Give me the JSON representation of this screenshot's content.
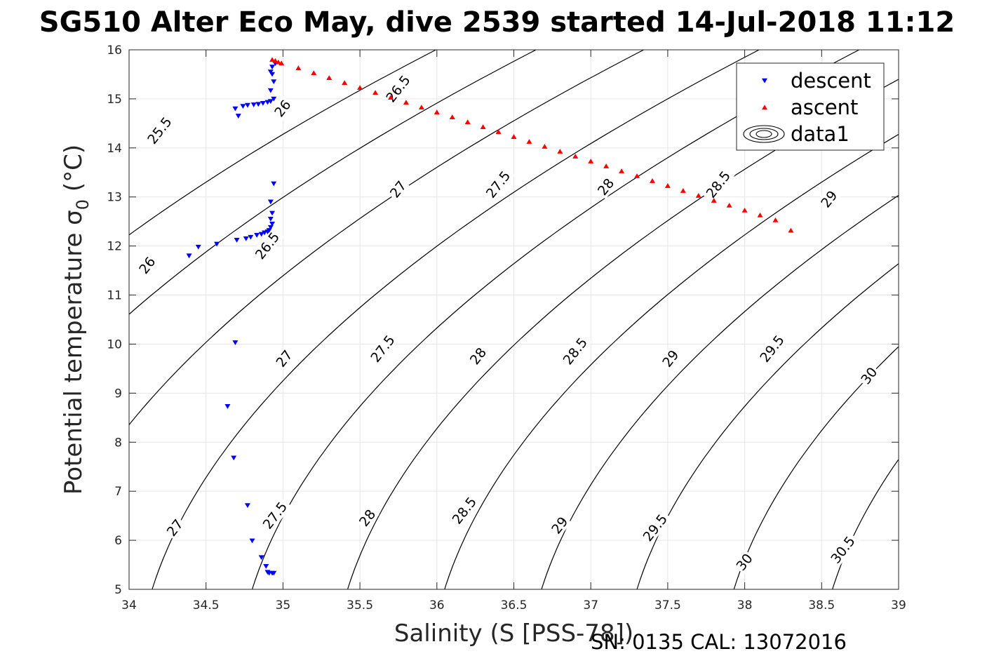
{
  "title": "SG510 Alter Eco May, dive 2539 started 14-Jul-2018 11:12",
  "footer": "SN: 0135  CAL: 13072016",
  "chart_data": {
    "type": "scatter",
    "xlabel": "Salinity (S [PSS-78])",
    "ylabel_text": "Potential temperature σ",
    "ylabel_subscript": "0",
    "ylabel_unit": " (°C)",
    "xlim": [
      34,
      39
    ],
    "ylim": [
      5,
      16
    ],
    "xticks": [
      "34",
      "34.5",
      "35",
      "35.5",
      "36",
      "36.5",
      "37",
      "37.5",
      "38",
      "38.5",
      "39"
    ],
    "yticks": [
      "5",
      "6",
      "7",
      "8",
      "9",
      "10",
      "11",
      "12",
      "13",
      "14",
      "15",
      "16"
    ],
    "grid": true,
    "legend_position": "top-right",
    "legend": [
      "descent",
      "ascent",
      "data1"
    ],
    "colors": {
      "descent": "#0000ff",
      "ascent": "#ff0000",
      "contour": "#000000"
    },
    "series": [
      {
        "name": "descent",
        "marker": "triangle-down",
        "x": [
          34.95,
          34.93,
          34.92,
          34.93,
          34.94,
          34.92,
          34.94,
          34.92,
          34.9,
          34.87,
          34.84,
          34.81,
          34.77,
          34.74,
          34.69,
          34.71,
          34.94,
          34.92,
          34.93,
          34.92,
          34.93,
          34.92,
          34.91,
          34.9,
          34.88,
          34.86,
          34.83,
          34.79,
          34.76,
          34.7,
          34.57,
          34.45,
          34.39,
          34.69,
          34.64,
          34.68,
          34.77,
          34.8,
          34.86,
          34.89,
          34.9,
          34.91,
          34.93,
          34.94
        ],
        "y": [
          15.72,
          15.65,
          15.55,
          15.5,
          15.35,
          15.17,
          15.0,
          14.95,
          14.93,
          14.91,
          14.89,
          14.88,
          14.87,
          14.85,
          14.8,
          14.65,
          13.27,
          12.9,
          12.67,
          12.55,
          12.45,
          12.38,
          12.32,
          12.29,
          12.27,
          12.24,
          12.22,
          12.18,
          12.15,
          12.12,
          12.04,
          11.98,
          11.8,
          10.03,
          8.73,
          7.68,
          6.71,
          5.99,
          5.65,
          5.47,
          5.35,
          5.33,
          5.33,
          5.33
        ]
      },
      {
        "name": "ascent",
        "marker": "triangle-up",
        "x": [
          34.93,
          34.95,
          34.97,
          34.99,
          35.1,
          35.2,
          35.3,
          35.4,
          35.5,
          35.6,
          35.7,
          35.8,
          35.9,
          36.0,
          36.1,
          36.2,
          36.3,
          36.4,
          36.5,
          36.6,
          36.7,
          36.8,
          36.9,
          37.0,
          37.1,
          37.2,
          37.3,
          37.4,
          37.5,
          37.6,
          37.7,
          37.8,
          37.9,
          38.0,
          38.1,
          38.2,
          38.3
        ],
        "y": [
          15.8,
          15.78,
          15.75,
          15.73,
          15.63,
          15.53,
          15.43,
          15.33,
          15.23,
          15.13,
          15.03,
          14.93,
          14.83,
          14.73,
          14.63,
          14.53,
          14.43,
          14.33,
          14.23,
          14.13,
          14.03,
          13.93,
          13.83,
          13.73,
          13.63,
          13.53,
          13.43,
          13.33,
          13.23,
          13.13,
          13.03,
          12.93,
          12.83,
          12.73,
          12.63,
          12.53,
          12.32
        ]
      }
    ],
    "contours": [
      {
        "level": "25.5",
        "s_at_t5": 32.05
      },
      {
        "level": "26",
        "s_at_t5": 32.7
      },
      {
        "level": "26.5",
        "s_at_t5": 33.4
      },
      {
        "level": "27",
        "s_at_t5": 34.15
      },
      {
        "level": "27.5",
        "s_at_t5": 34.8
      },
      {
        "level": "28",
        "s_at_t5": 35.42
      },
      {
        "level": "28.5",
        "s_at_t5": 36.05
      },
      {
        "level": "29",
        "s_at_t5": 36.68
      },
      {
        "level": "29.5",
        "s_at_t5": 37.3
      },
      {
        "level": "30",
        "s_at_t5": 37.93
      },
      {
        "level": "30.5",
        "s_at_t5": 38.57
      }
    ],
    "contour_labels": [
      {
        "text": "25.5",
        "s": 34.2,
        "t": 14.35
      },
      {
        "text": "26",
        "s": 34.12,
        "t": 11.6
      },
      {
        "text": "26",
        "s": 35.0,
        "t": 14.8
      },
      {
        "text": "26.5",
        "s": 34.9,
        "t": 12.0
      },
      {
        "text": "26.5",
        "s": 35.75,
        "t": 15.2
      },
      {
        "text": "27",
        "s": 34.3,
        "t": 6.25
      },
      {
        "text": "27",
        "s": 35.01,
        "t": 9.7
      },
      {
        "text": "27",
        "s": 35.75,
        "t": 13.15
      },
      {
        "text": "27.5",
        "s": 34.95,
        "t": 6.5
      },
      {
        "text": "27.5",
        "s": 35.65,
        "t": 9.9
      },
      {
        "text": "27.5",
        "s": 36.4,
        "t": 13.25
      },
      {
        "text": "28",
        "s": 35.55,
        "t": 6.45
      },
      {
        "text": "28",
        "s": 36.27,
        "t": 9.75
      },
      {
        "text": "28",
        "s": 37.1,
        "t": 13.2
      },
      {
        "text": "28.5",
        "s": 36.18,
        "t": 6.6
      },
      {
        "text": "28.5",
        "s": 36.9,
        "t": 9.85
      },
      {
        "text": "28.5",
        "s": 37.83,
        "t": 13.25
      },
      {
        "text": "29",
        "s": 36.8,
        "t": 6.3
      },
      {
        "text": "29",
        "s": 37.52,
        "t": 9.7
      },
      {
        "text": "29",
        "s": 38.55,
        "t": 12.95
      },
      {
        "text": "29.5",
        "s": 37.42,
        "t": 6.25
      },
      {
        "text": "29.5",
        "s": 38.18,
        "t": 9.9
      },
      {
        "text": "30",
        "s": 38.0,
        "t": 5.55
      },
      {
        "text": "30",
        "s": 38.81,
        "t": 9.35
      },
      {
        "text": "30.5",
        "s": 38.64,
        "t": 5.8
      }
    ]
  }
}
